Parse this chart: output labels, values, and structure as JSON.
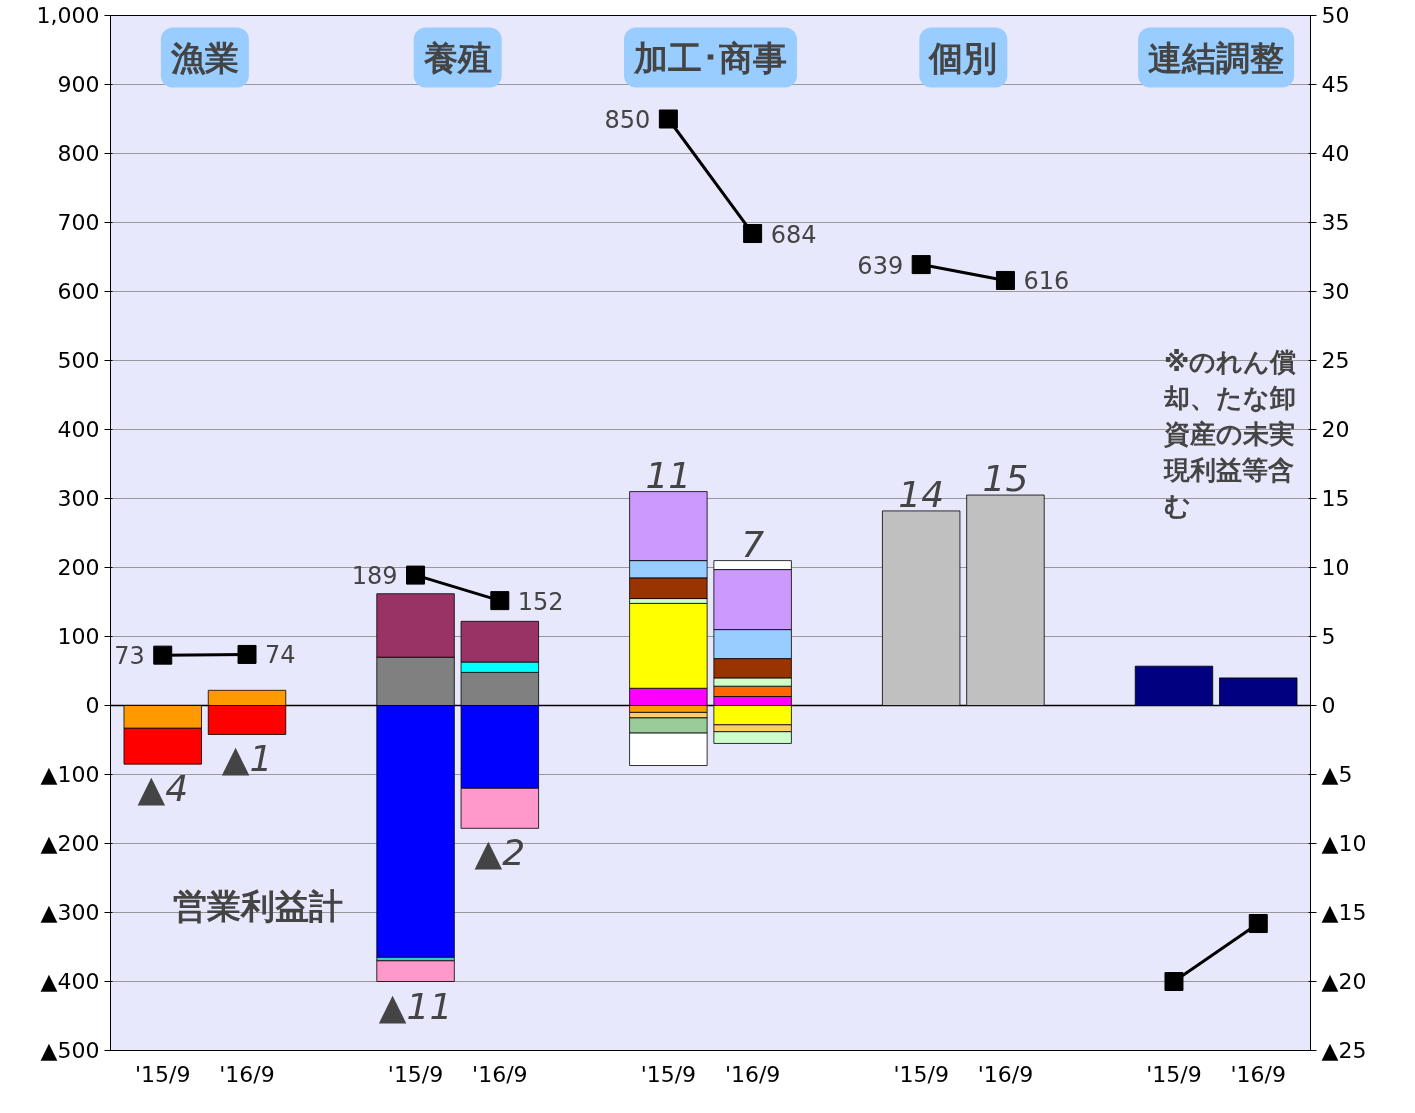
{
  "chart_data": {
    "type": "bar",
    "stacked": true,
    "categories": [
      "'15/9",
      "'16/9",
      "'15/9",
      "'16/9",
      "'15/9",
      "'16/9",
      "'15/9",
      "'16/9",
      "'15/9",
      "'16/9"
    ],
    "series": [
      {
        "axis": "y2",
        "color": "#ff9900",
        "values": [
          -1.65,
          1.1,
          null,
          null,
          -0.5,
          null,
          null,
          null,
          null,
          null
        ]
      },
      {
        "axis": "y2",
        "color": "#ff0000",
        "values": [
          -2.6,
          -2.1,
          null,
          null,
          null,
          null,
          null,
          null,
          null,
          null
        ]
      },
      {
        "axis": "y2",
        "color": "#808080",
        "values": [
          null,
          null,
          3.5,
          2.4,
          null,
          null,
          null,
          null,
          null,
          null
        ]
      },
      {
        "axis": "y2",
        "color": "#00ffff",
        "values": [
          null,
          null,
          null,
          0.75,
          null,
          null,
          null,
          null,
          null,
          null
        ]
      },
      {
        "axis": "y2",
        "color": "#993366",
        "values": [
          null,
          null,
          4.6,
          2.95,
          null,
          null,
          null,
          null,
          null,
          null
        ]
      },
      {
        "axis": "y2",
        "color": "#0000ff",
        "values": [
          null,
          null,
          -18.25,
          -6,
          null,
          null,
          null,
          null,
          null,
          null
        ]
      },
      {
        "axis": "y2",
        "color": "#33cccc",
        "values": [
          null,
          null,
          -0.25,
          null,
          null,
          null,
          null,
          null,
          null,
          null
        ]
      },
      {
        "axis": "y2",
        "color": "#ff99cc",
        "values": [
          null,
          null,
          -1.5,
          -2.9,
          null,
          null,
          null,
          null,
          null,
          null
        ]
      },
      {
        "axis": "y2",
        "color": "#ff00ff",
        "values": [
          null,
          null,
          null,
          null,
          1.25,
          0.65,
          null,
          null,
          null,
          null
        ]
      },
      {
        "axis": "y2",
        "color": "#ff6600",
        "values": [
          null,
          null,
          null,
          null,
          null,
          0.75,
          null,
          null,
          null,
          null
        ]
      },
      {
        "axis": "y2",
        "color": "#ffff00",
        "values": [
          null,
          null,
          null,
          null,
          6.15,
          -1.4,
          null,
          null,
          null,
          null
        ]
      },
      {
        "axis": "y2",
        "color": "#ffcc66",
        "values": [
          null,
          null,
          null,
          null,
          -0.4,
          -0.5,
          null,
          null,
          null,
          null
        ]
      },
      {
        "axis": "y2",
        "color": "#99cc99",
        "values": [
          null,
          null,
          null,
          null,
          -1.1,
          null,
          null,
          null,
          null,
          null
        ]
      },
      {
        "axis": "y2",
        "color": "#ccffcc",
        "values": [
          null,
          null,
          null,
          null,
          0.35,
          0.6,
          null,
          null,
          null,
          null
        ]
      },
      {
        "axis": "y2",
        "color": "#ccffcc",
        "values": [
          null,
          null,
          null,
          null,
          null,
          -0.85,
          null,
          null,
          null,
          null
        ]
      },
      {
        "axis": "y2",
        "color": "#993300",
        "values": [
          null,
          null,
          null,
          null,
          1.5,
          1.4,
          null,
          null,
          null,
          null
        ]
      },
      {
        "axis": "y2",
        "color": "#99ccff",
        "values": [
          null,
          null,
          null,
          null,
          1.25,
          2.1,
          null,
          null,
          null,
          null
        ]
      },
      {
        "axis": "y2",
        "color": "#cc99ff",
        "values": [
          null,
          null,
          null,
          null,
          5.0,
          4.35,
          null,
          null,
          null,
          null
        ]
      },
      {
        "axis": "y2",
        "color": "#ffffff",
        "values": [
          null,
          null,
          null,
          null,
          -2.35,
          0.65,
          null,
          null,
          null,
          null
        ]
      },
      {
        "axis": "y2",
        "color": "#c0c0c0",
        "values": [
          null,
          null,
          null,
          null,
          null,
          null,
          14.1,
          15.25,
          null,
          null
        ]
      },
      {
        "axis": "y2",
        "color": "#000080",
        "values": [
          null,
          null,
          null,
          null,
          null,
          null,
          null,
          null,
          2.85,
          2.0
        ]
      },
      {
        "type": "line",
        "color": "#000000",
        "values": [
          73,
          74,
          null,
          null,
          null,
          null,
          null,
          null,
          null,
          null
        ],
        "value_labels": [
          "73",
          "74",
          null,
          null,
          null,
          null,
          null,
          null,
          null,
          null
        ]
      },
      {
        "type": "line",
        "color": "#000000",
        "values": [
          null,
          null,
          189,
          152,
          null,
          null,
          null,
          null,
          null,
          null
        ],
        "value_labels": [
          null,
          null,
          "189",
          "152",
          null,
          null,
          null,
          null,
          null,
          null
        ]
      },
      {
        "type": "line",
        "color": "#000000",
        "values": [
          null,
          null,
          null,
          null,
          850,
          684,
          null,
          null,
          null,
          null
        ],
        "value_labels": [
          null,
          null,
          null,
          null,
          "850",
          "684",
          null,
          null,
          null,
          null
        ]
      },
      {
        "type": "line",
        "color": "#000000",
        "values": [
          null,
          null,
          null,
          null,
          null,
          null,
          639,
          616,
          null,
          null
        ],
        "value_labels": [
          null,
          null,
          null,
          null,
          null,
          null,
          "639",
          "616",
          null,
          null
        ]
      },
      {
        "type": "line",
        "color": "#000000",
        "values": [
          null,
          null,
          null,
          null,
          null,
          null,
          null,
          null,
          -400,
          -316
        ]
      }
    ],
    "ylim": [
      -500,
      1000
    ],
    "yticks": [
      {
        "value": -500,
        "label": "▲500"
      },
      {
        "value": -400,
        "label": "▲400"
      },
      {
        "value": -300,
        "label": "▲300"
      },
      {
        "value": -200,
        "label": "▲200"
      },
      {
        "value": -100,
        "label": "▲100"
      },
      0,
      100,
      200,
      300,
      400,
      500,
      600,
      700,
      800,
      900,
      {
        "value": 1000,
        "label": "1,000"
      }
    ],
    "y2lim": [
      -25,
      50
    ],
    "y2ticks": [
      {
        "value": -25,
        "label": "▲25"
      },
      {
        "value": -20,
        "label": "▲20"
      },
      {
        "value": -15,
        "label": "▲15"
      },
      {
        "value": -10,
        "label": "▲10"
      },
      {
        "value": -5,
        "label": "▲5"
      },
      0,
      5,
      10,
      15,
      20,
      25,
      30,
      35,
      40,
      45,
      50
    ],
    "grid": "y",
    "marker": "square",
    "totals": [
      "▲4",
      "▲1",
      "▲11",
      "▲2",
      "11",
      "7",
      "14",
      "15",
      null,
      null
    ],
    "annotations": [
      "漁業",
      "養殖",
      "加工･商事",
      "個別",
      "連結調整",
      "営業利益計",
      "※のれん償却、たな卸資産の未実現利益等含む"
    ]
  }
}
